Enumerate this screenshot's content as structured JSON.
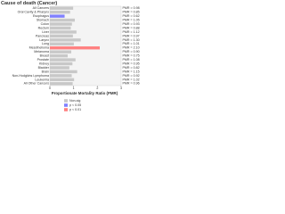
{
  "chart_data": {
    "type": "bar",
    "orientation": "horizontal",
    "title": "Cause of death (Cancer)",
    "xlabel": "Proportionate Mortality Ratio (PMR)",
    "categories": [
      "All Cancers",
      "Oral Cavity & Pharynx",
      "Esophagus",
      "Stomach",
      "Colon",
      "Rectum",
      "Liver",
      "Pancreas",
      "Larynx",
      "Lung",
      "Mesothelioma",
      "Melanoma",
      "Breast",
      "Prostate",
      "Kidney",
      "Bladder",
      "Brain",
      "Non-Hodgkins Lymphoma",
      "Leukemia",
      "All Other Cancers"
    ],
    "values": [
      0.98,
      0.85,
      0.62,
      1.05,
      0.93,
      0.88,
      1.12,
      0.97,
      1.3,
      1.01,
      2.1,
      0.9,
      0.75,
      1.08,
      0.95,
      0.82,
      1.15,
      0.92,
      1.02,
      0.96
    ],
    "value_labels": [
      "PMR = 0.98",
      "PMR = 0.85",
      "PMR = 0.62",
      "PMR = 1.05",
      "PMR = 0.93",
      "PMR = 0.88",
      "PMR = 1.12",
      "PMR = 0.97",
      "PMR = 1.30",
      "PMR = 1.01",
      "PMR = 2.10",
      "PMR = 0.90",
      "PMR = 0.75",
      "PMR = 1.08",
      "PMR = 0.95",
      "PMR = 0.82",
      "PMR = 1.15",
      "PMR = 0.92",
      "PMR = 1.02",
      "PMR = 0.96"
    ],
    "colors": [
      "#c8c8c8",
      "#c8c8c8",
      "#8080ff",
      "#c8c8c8",
      "#c8c8c8",
      "#c8c8c8",
      "#c8c8c8",
      "#c8c8c8",
      "#c8c8c8",
      "#c8c8c8",
      "#ff8080",
      "#c8c8c8",
      "#c8c8c8",
      "#c8c8c8",
      "#c8c8c8",
      "#c8c8c8",
      "#c8c8c8",
      "#c8c8c8",
      "#c8c8c8",
      "#c8c8c8"
    ],
    "xlim": [
      0,
      3
    ],
    "xticks": [
      0,
      1,
      2,
      3
    ],
    "legend": [
      {
        "label": "Non-sig",
        "color": "#c8c8c8"
      },
      {
        "label": "p < 0.05",
        "color": "#8080ff"
      },
      {
        "label": "p < 0.01",
        "color": "#ff8080"
      }
    ]
  }
}
